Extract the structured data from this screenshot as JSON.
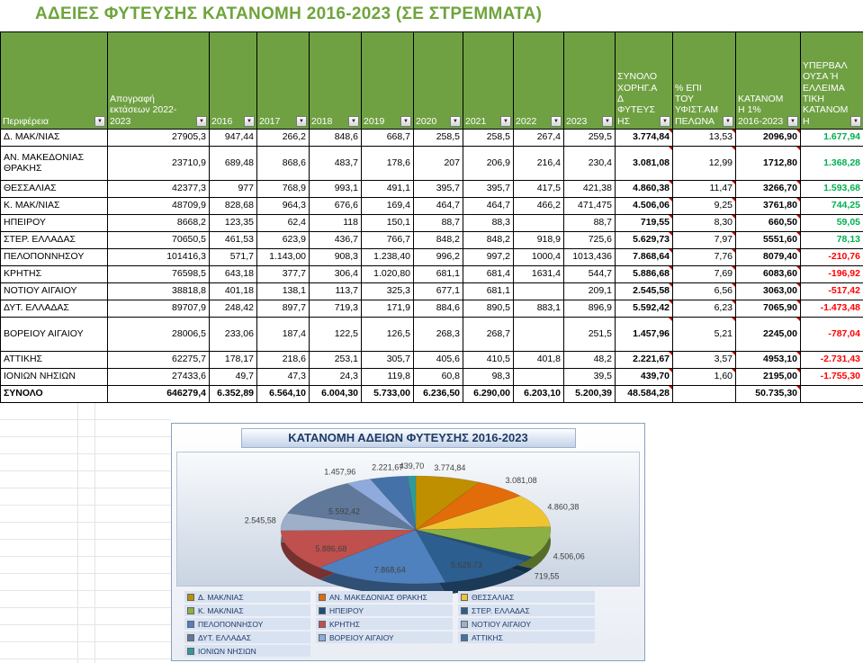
{
  "title": "ΑΔΕΙΕΣ ΦΥΤΕΥΣΗΣ ΚΑΤΑΝΟΜΗ 2016-2023 (ΣΕ ΣΤΡΕΜΜΑΤΑ)",
  "colors": {
    "title_green": "#6EA43C",
    "header_green": "#6FA143",
    "positive": "#00B050",
    "negative": "#FF0000",
    "comment_indicator": "#C00000"
  },
  "icons": {
    "filter_dropdown": "▼"
  },
  "table": {
    "headers": [
      "Περιφέρεια",
      "Απογραφή εκτάσεων 2022-2023",
      "2016",
      "2017",
      "2018",
      "2019",
      "2020",
      "2021",
      "2022",
      "2023",
      "ΣΥΝΟΛΟ ΧΟΡΗΓ.ΑΔ ΦΥΤΕΥΣΗΣ",
      "% ΕΠΙ ΤΟΥ ΥΦΙΣΤ.ΑΜΠΕΛΩΝΑ",
      "ΚΑΤΑΝΟΜΗ 1% 2016-2023",
      "ΥΠΕΡΒΑΛΟΥΣΑ Ή ΕΛΛΕΙΜΑΤΙΚΗ ΚΑΤΑΝΟΜΗ"
    ],
    "rows": [
      [
        "Δ. ΜΑΚ/ΝΙΑΣ",
        "27905,3",
        "947,44",
        "266,2",
        "848,6",
        "668,7",
        "258,5",
        "258,5",
        "267,4",
        "259,5",
        "3.774,84",
        "13,53",
        "2096,90",
        "1.677,94"
      ],
      [
        "ΑΝ. ΜΑΚΕΔΟΝΙΑΣ ΘΡΑΚΗΣ",
        "23710,9",
        "689,48",
        "868,6",
        "483,7",
        "178,6",
        "207",
        "206,9",
        "216,4",
        "230,4",
        "3.081,08",
        "12,99",
        "1712,80",
        "1.368,28"
      ],
      [
        "ΘΕΣΣΑΛΙΑΣ",
        "42377,3",
        "977",
        "768,9",
        "993,1",
        "491,1",
        "395,7",
        "395,7",
        "417,5",
        "421,38",
        "4.860,38",
        "11,47",
        "3266,70",
        "1.593,68"
      ],
      [
        "Κ. ΜΑΚ/ΝΙΑΣ",
        "48709,9",
        "828,68",
        "964,3",
        "676,6",
        "169,4",
        "464,7",
        "464,7",
        "466,2",
        "471,475",
        "4.506,06",
        "9,25",
        "3761,80",
        "744,25"
      ],
      [
        "ΗΠΕΙΡΟΥ",
        "8668,2",
        "123,35",
        "62,4",
        "118",
        "150,1",
        "88,7",
        "88,3",
        "",
        "88,7",
        "719,55",
        "8,30",
        "660,50",
        "59,05"
      ],
      [
        "ΣΤΕΡ. ΕΛΛΑΔΑΣ",
        "70650,5",
        "461,53",
        "623,9",
        "436,7",
        "766,7",
        "848,2",
        "848,2",
        "918,9",
        "725,6",
        "5.629,73",
        "7,97",
        "5551,60",
        "78,13"
      ],
      [
        "ΠΕΛΟΠΟΝΝΗΣΟΥ",
        "101416,3",
        "571,7",
        "1.143,00",
        "908,3",
        "1.238,40",
        "996,2",
        "997,2",
        "1000,4",
        "1013,436",
        "7.868,64",
        "7,76",
        "8079,40",
        "-210,76"
      ],
      [
        "ΚΡΗΤΗΣ",
        "76598,5",
        "643,18",
        "377,7",
        "306,4",
        "1.020,80",
        "681,1",
        "681,4",
        "1631,4",
        "544,7",
        "5.886,68",
        "7,69",
        "6083,60",
        "-196,92"
      ],
      [
        "ΝΟΤΙΟΥ ΑΙΓΑΙΟΥ",
        "38818,8",
        "401,18",
        "138,1",
        "113,7",
        "325,3",
        "677,1",
        "681,1",
        "",
        "209,1",
        "2.545,58",
        "6,56",
        "3063,00",
        "-517,42"
      ],
      [
        "ΔΥΤ. ΕΛΛΑΔΑΣ",
        "89707,9",
        "248,42",
        "897,7",
        "719,3",
        "171,9",
        "884,6",
        "890,5",
        "883,1",
        "896,9",
        "5.592,42",
        "6,23",
        "7065,90",
        "-1.473,48"
      ],
      [
        "ΒΟΡΕΙΟΥ ΑΙΓΑΙΟΥ",
        "28006,5",
        "233,06",
        "187,4",
        "122,5",
        "126,5",
        "268,3",
        "268,7",
        "",
        "251,5",
        "1.457,96",
        "5,21",
        "2245,00",
        "-787,04"
      ],
      [
        "ΑΤΤΙΚΗΣ",
        "62275,7",
        "178,17",
        "218,6",
        "253,1",
        "305,7",
        "405,6",
        "410,5",
        "401,8",
        "48,2",
        "2.221,67",
        "3,57",
        "4953,10",
        "-2.731,43"
      ],
      [
        "ΙΟΝΙΩΝ ΝΗΣΙΩΝ",
        "27433,6",
        "49,7",
        "47,3",
        "24,3",
        "119,8",
        "60,8",
        "98,3",
        "",
        "39,5",
        "439,70",
        "1,60",
        "2195,00",
        "-1.755,30"
      ]
    ],
    "total": [
      "ΣΥΝΟΛΟ",
      "646279,4",
      "6.352,89",
      "6.564,10",
      "6.004,30",
      "5.733,00",
      "6.236,50",
      "6.290,00",
      "6.203,10",
      "5.200,39",
      "48.584,28",
      "",
      "50.735,30",
      ""
    ],
    "comment_marker_cols": [
      10,
      11,
      12
    ],
    "total_marker_cols": [
      10,
      12
    ]
  },
  "chart_data": {
    "type": "pie",
    "title": "ΚΑΤΑΝΟΜΗ ΑΔΕΙΩΝ ΦΥΤΕΥΣΗΣ 2016-2023",
    "labels": [
      "Δ. ΜΑΚ/ΝΙΑΣ",
      "ΑΝ. ΜΑΚΕΔΟΝΙΑΣ ΘΡΑΚΗΣ",
      "ΘΕΣΣΑΛΙΑΣ",
      "Κ. ΜΑΚ/ΝΙΑΣ",
      "ΗΠΕΙΡΟΥ",
      "ΣΤΕΡ. ΕΛΛΑΔΑΣ",
      "ΠΕΛΟΠΟΝΝΗΣΟΥ",
      "ΚΡΗΤΗΣ",
      "ΝΟΤΙΟΥ ΑΙΓΑΙΟΥ",
      "ΔΥΤ. ΕΛΛΑΔΑΣ",
      "ΒΟΡΕΙΟΥ ΑΙΓΑΙΟΥ",
      "ΑΤΤΙΚΗΣ",
      "ΙΟΝΙΩΝ ΝΗΣΙΩΝ"
    ],
    "values": [
      3774.84,
      3081.08,
      4860.38,
      4506.06,
      719.55,
      5629.73,
      7868.64,
      5886.68,
      2545.58,
      5592.42,
      1457.96,
      2221.67,
      439.7
    ],
    "display_values": [
      "3.774,84",
      "3.081,08",
      "4.860,38",
      "4.506,06",
      "719,55",
      "5.629,73",
      "7.868,64",
      "5.886,68",
      "2.545,58",
      "5.592,42",
      "1.457,96",
      "2.221,67",
      "439,70"
    ],
    "colors": [
      "#BF8F00",
      "#E26B0A",
      "#EFC431",
      "#8CB044",
      "#1F4E78",
      "#2C5F8F",
      "#4E81BD",
      "#C0504D",
      "#9DAFC9",
      "#60799B",
      "#8FAADC",
      "#4472A8",
      "#2E9B9B"
    ],
    "inside_label_indices": [
      5,
      6,
      7,
      9
    ],
    "legend_position": "bottom",
    "style": "pie-3d"
  }
}
